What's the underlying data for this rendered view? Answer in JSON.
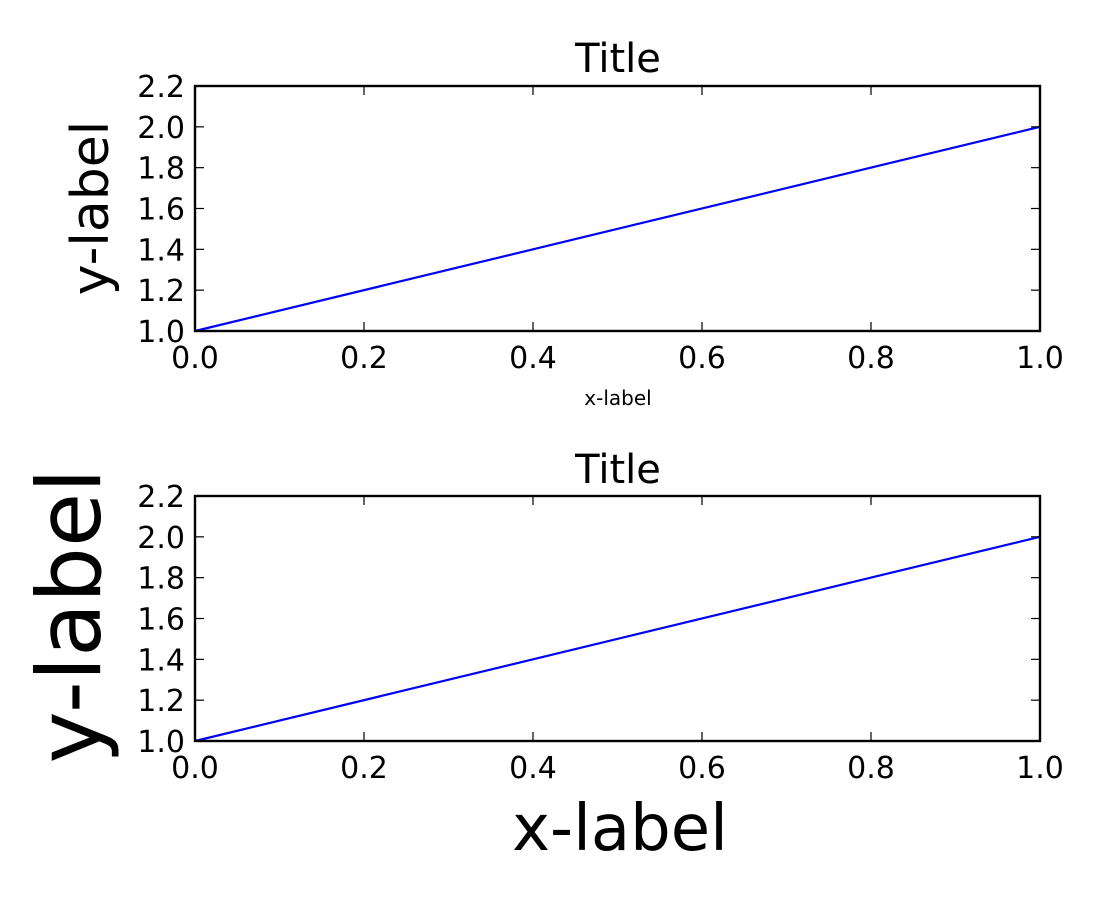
{
  "chart_data": [
    {
      "type": "line",
      "title": "Title",
      "xlabel": "x-label",
      "ylabel": "y-label",
      "xlim": [
        0.0,
        1.0
      ],
      "ylim": [
        1.0,
        2.2
      ],
      "xticks": [
        0.0,
        0.2,
        0.4,
        0.6,
        0.8,
        1.0
      ],
      "xtick_labels": [
        "0.0",
        "0.2",
        "0.4",
        "0.6",
        "0.8",
        "1.0"
      ],
      "yticks": [
        1.0,
        1.2,
        1.4,
        1.6,
        1.8,
        2.0,
        2.2
      ],
      "ytick_labels": [
        "1.0",
        "1.2",
        "1.4",
        "1.6",
        "1.8",
        "2.0",
        "2.2"
      ],
      "grid": false,
      "series": [
        {
          "x": [
            0.0,
            1.0
          ],
          "y": [
            1.0,
            2.0
          ],
          "color": "#0000ff"
        }
      ]
    },
    {
      "type": "line",
      "title": "Title",
      "xlabel": "x-label",
      "ylabel": "y-label",
      "xlim": [
        0.0,
        1.0
      ],
      "ylim": [
        1.0,
        2.2
      ],
      "xticks": [
        0.0,
        0.2,
        0.4,
        0.6,
        0.8,
        1.0
      ],
      "xtick_labels": [
        "0.0",
        "0.2",
        "0.4",
        "0.6",
        "0.8",
        "1.0"
      ],
      "yticks": [
        1.0,
        1.2,
        1.4,
        1.6,
        1.8,
        2.0,
        2.2
      ],
      "ytick_labels": [
        "1.0",
        "1.2",
        "1.4",
        "1.6",
        "1.8",
        "2.0",
        "2.2"
      ],
      "grid": false,
      "series": [
        {
          "x": [
            0.0,
            1.0
          ],
          "y": [
            1.0,
            2.0
          ],
          "color": "#0000ff"
        }
      ]
    }
  ]
}
